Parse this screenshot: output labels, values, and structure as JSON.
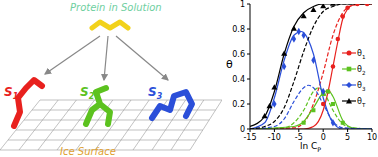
{
  "diagram": {
    "title": "Protein in Solution",
    "states": [
      {
        "label": "S1",
        "color": "#e8211e"
      },
      {
        "label": "S2",
        "color": "#5cc21f"
      },
      {
        "label": "S3",
        "color": "#2b4fd9"
      }
    ],
    "surface": "Ice Surface"
  },
  "chart_data": {
    "type": "line",
    "x_label": "ln CP",
    "y_label": "θ",
    "xlim": [
      -15,
      10
    ],
    "ylim": [
      0,
      1
    ],
    "xticks": [
      -15,
      -10,
      -5,
      0,
      5,
      10
    ],
    "yticks": [
      0,
      0.2,
      0.4,
      0.6,
      0.8,
      1
    ],
    "legend": "right",
    "series": [
      {
        "name": "θ1",
        "type": "scatter",
        "marker": "circle",
        "color": "#e8211e",
        "x": [
          0,
          1,
          2,
          3,
          4,
          5,
          7,
          9
        ],
        "values": [
          0.2,
          0.3,
          0.5,
          0.72,
          0.9,
          0.97,
          1,
          1
        ]
      },
      {
        "type": "line",
        "line_style": "solid",
        "color": "#e8211e",
        "x": [
          -15,
          -4,
          -2,
          0,
          1,
          2,
          3,
          4,
          5,
          6,
          8,
          10
        ],
        "values": [
          0,
          0,
          0.02,
          0.15,
          0.3,
          0.5,
          0.7,
          0.88,
          0.96,
          0.99,
          1,
          1
        ]
      },
      {
        "type": "line",
        "line_style": "dashed",
        "color": "#e8211e",
        "x": [
          -15,
          -6,
          -4,
          -2,
          0,
          2,
          4,
          6,
          8,
          10
        ],
        "values": [
          0,
          0.01,
          0.05,
          0.2,
          0.45,
          0.75,
          0.93,
          0.99,
          1,
          1
        ]
      },
      {
        "name": "θ2",
        "type": "scatter",
        "marker": "square",
        "color": "#5cc21f",
        "x": [
          -4,
          -2,
          0,
          1,
          2,
          4
        ],
        "values": [
          0.05,
          0.15,
          0.28,
          0.3,
          0.2,
          0.05
        ]
      },
      {
        "type": "line",
        "line_style": "solid",
        "color": "#5cc21f",
        "x": [
          -15,
          -6,
          -4,
          -2,
          0,
          1,
          2,
          4,
          6,
          10
        ],
        "values": [
          0,
          0.02,
          0.06,
          0.17,
          0.29,
          0.31,
          0.26,
          0.07,
          0.01,
          0
        ]
      },
      {
        "type": "line",
        "line_style": "dashed",
        "color": "#5cc21f",
        "x": [
          -15,
          -8,
          -6,
          -4,
          -2,
          -1,
          0,
          2,
          4,
          6,
          10
        ],
        "values": [
          0,
          0.01,
          0.05,
          0.15,
          0.3,
          0.33,
          0.3,
          0.15,
          0.04,
          0.01,
          0
        ]
      },
      {
        "name": "θ3",
        "type": "scatter",
        "marker": "diamond",
        "color": "#2b4fd9",
        "x": [
          -10,
          -8,
          -6,
          -5,
          -4,
          -2,
          0,
          2
        ],
        "values": [
          0.2,
          0.5,
          0.72,
          0.78,
          0.75,
          0.55,
          0.3,
          0.05
        ]
      },
      {
        "type": "line",
        "line_style": "solid",
        "color": "#2b4fd9",
        "x": [
          -15,
          -12,
          -10,
          -8,
          -6,
          -4.5,
          -4,
          -2,
          0,
          2,
          4,
          10
        ],
        "values": [
          0,
          0.05,
          0.25,
          0.55,
          0.75,
          0.78,
          0.77,
          0.6,
          0.25,
          0.05,
          0,
          0
        ]
      },
      {
        "type": "line",
        "line_style": "dashed",
        "color": "#2b4fd9",
        "x": [
          -15,
          -10,
          -8,
          -6,
          -4,
          -3,
          -2,
          0,
          2,
          4,
          10
        ],
        "values": [
          0,
          0.02,
          0.08,
          0.22,
          0.33,
          0.35,
          0.33,
          0.2,
          0.06,
          0.01,
          0
        ]
      },
      {
        "name": "θT",
        "type": "scatter",
        "marker": "triangle",
        "color": "#000000",
        "x": [
          -12,
          -11,
          -10,
          -8,
          -6,
          -4,
          -2,
          0,
          2
        ],
        "values": [
          0.1,
          0.18,
          0.33,
          0.6,
          0.8,
          0.9,
          0.95,
          0.98,
          1
        ]
      },
      {
        "type": "line",
        "line_style": "solid",
        "color": "#000000",
        "x": [
          -15,
          -12,
          -10,
          -8,
          -6,
          -4,
          -2,
          0,
          10
        ],
        "values": [
          0.02,
          0.1,
          0.3,
          0.6,
          0.82,
          0.93,
          0.98,
          1,
          1
        ]
      },
      {
        "type": "line",
        "line_style": "dashed",
        "color": "#000000",
        "x": [
          -15,
          -12,
          -10,
          -8,
          -6,
          -4,
          -2,
          0,
          2,
          4,
          10
        ],
        "values": [
          0,
          0.02,
          0.06,
          0.17,
          0.38,
          0.62,
          0.82,
          0.94,
          0.98,
          1,
          1
        ]
      }
    ]
  }
}
